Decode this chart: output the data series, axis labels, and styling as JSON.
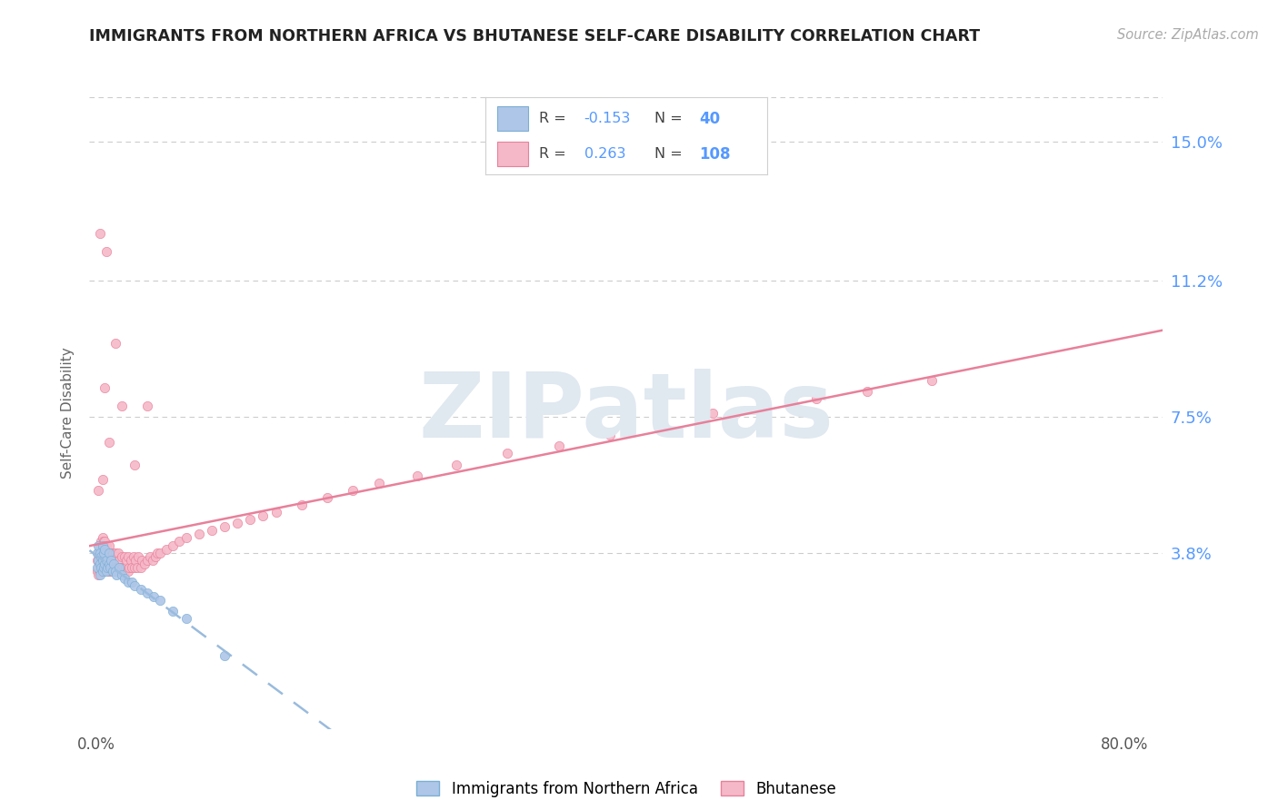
{
  "title": "IMMIGRANTS FROM NORTHERN AFRICA VS BHUTANESE SELF-CARE DISABILITY CORRELATION CHART",
  "source": "Source: ZipAtlas.com",
  "ylabel": "Self-Care Disability",
  "x_tick_labels": [
    "0.0%",
    "",
    "",
    "",
    "80.0%"
  ],
  "x_tick_values": [
    0.0,
    0.2,
    0.4,
    0.6,
    0.8
  ],
  "y_tick_labels": [
    "3.8%",
    "7.5%",
    "11.2%",
    "15.0%"
  ],
  "y_tick_values": [
    0.038,
    0.075,
    0.112,
    0.15
  ],
  "xlim": [
    -0.005,
    0.83
  ],
  "ylim": [
    -0.01,
    0.162
  ],
  "background_color": "#ffffff",
  "grid_color": "#cccccc",
  "blue_fill": "#aec6e8",
  "blue_edge": "#7aafd4",
  "pink_fill": "#f5b8c8",
  "pink_edge": "#e8809a",
  "trend_blue_color": "#99bbdd",
  "trend_pink_color": "#e8809a",
  "label_color": "#5599ff",
  "watermark_color": "#e0e8f0",
  "R_blue": -0.153,
  "N_blue": 40,
  "R_pink": 0.263,
  "N_pink": 108,
  "blue_x": [
    0.001,
    0.001,
    0.002,
    0.002,
    0.003,
    0.003,
    0.003,
    0.004,
    0.004,
    0.005,
    0.005,
    0.005,
    0.006,
    0.006,
    0.007,
    0.007,
    0.008,
    0.008,
    0.009,
    0.01,
    0.01,
    0.011,
    0.012,
    0.013,
    0.014,
    0.015,
    0.016,
    0.018,
    0.02,
    0.022,
    0.025,
    0.028,
    0.03,
    0.035,
    0.04,
    0.045,
    0.05,
    0.06,
    0.07,
    0.1
  ],
  "blue_y": [
    0.034,
    0.038,
    0.036,
    0.04,
    0.032,
    0.035,
    0.038,
    0.034,
    0.037,
    0.033,
    0.036,
    0.04,
    0.034,
    0.038,
    0.035,
    0.039,
    0.033,
    0.036,
    0.034,
    0.035,
    0.038,
    0.034,
    0.036,
    0.033,
    0.035,
    0.033,
    0.032,
    0.034,
    0.032,
    0.031,
    0.03,
    0.03,
    0.029,
    0.028,
    0.027,
    0.026,
    0.025,
    0.022,
    0.02,
    0.01
  ],
  "pink_x": [
    0.001,
    0.001,
    0.002,
    0.002,
    0.002,
    0.003,
    0.003,
    0.003,
    0.004,
    0.004,
    0.004,
    0.005,
    0.005,
    0.005,
    0.005,
    0.006,
    0.006,
    0.006,
    0.007,
    0.007,
    0.007,
    0.008,
    0.008,
    0.008,
    0.009,
    0.009,
    0.01,
    0.01,
    0.01,
    0.011,
    0.011,
    0.012,
    0.012,
    0.013,
    0.013,
    0.014,
    0.014,
    0.015,
    0.015,
    0.016,
    0.016,
    0.017,
    0.017,
    0.018,
    0.018,
    0.019,
    0.02,
    0.02,
    0.021,
    0.022,
    0.022,
    0.023,
    0.024,
    0.025,
    0.025,
    0.026,
    0.027,
    0.028,
    0.029,
    0.03,
    0.031,
    0.032,
    0.033,
    0.035,
    0.036,
    0.038,
    0.04,
    0.042,
    0.044,
    0.046,
    0.048,
    0.05,
    0.055,
    0.06,
    0.065,
    0.07,
    0.08,
    0.09,
    0.1,
    0.11,
    0.12,
    0.13,
    0.14,
    0.16,
    0.18,
    0.2,
    0.22,
    0.25,
    0.28,
    0.32,
    0.36,
    0.4,
    0.44,
    0.48,
    0.52,
    0.56,
    0.6,
    0.65,
    0.005,
    0.01,
    0.015,
    0.007,
    0.02,
    0.03,
    0.008,
    0.04,
    0.002,
    0.003
  ],
  "pink_y": [
    0.033,
    0.036,
    0.034,
    0.038,
    0.032,
    0.033,
    0.037,
    0.04,
    0.034,
    0.038,
    0.041,
    0.033,
    0.036,
    0.039,
    0.042,
    0.034,
    0.037,
    0.041,
    0.034,
    0.038,
    0.041,
    0.033,
    0.037,
    0.04,
    0.034,
    0.038,
    0.033,
    0.037,
    0.04,
    0.034,
    0.038,
    0.033,
    0.037,
    0.034,
    0.038,
    0.033,
    0.036,
    0.034,
    0.038,
    0.033,
    0.037,
    0.034,
    0.038,
    0.033,
    0.036,
    0.034,
    0.033,
    0.037,
    0.034,
    0.033,
    0.037,
    0.034,
    0.036,
    0.033,
    0.037,
    0.034,
    0.036,
    0.034,
    0.037,
    0.034,
    0.036,
    0.034,
    0.037,
    0.034,
    0.036,
    0.035,
    0.036,
    0.037,
    0.036,
    0.037,
    0.038,
    0.038,
    0.039,
    0.04,
    0.041,
    0.042,
    0.043,
    0.044,
    0.045,
    0.046,
    0.047,
    0.048,
    0.049,
    0.051,
    0.053,
    0.055,
    0.057,
    0.059,
    0.062,
    0.065,
    0.067,
    0.07,
    0.073,
    0.076,
    0.078,
    0.08,
    0.082,
    0.085,
    0.058,
    0.068,
    0.095,
    0.083,
    0.078,
    0.062,
    0.12,
    0.078,
    0.055,
    0.125
  ]
}
